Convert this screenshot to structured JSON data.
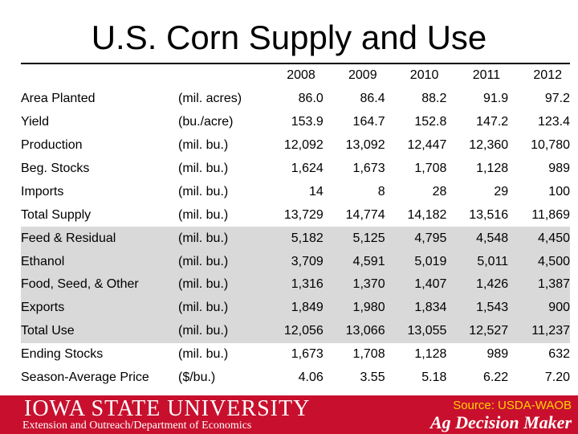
{
  "title": "U.S. Corn Supply and Use",
  "years": [
    "2008",
    "2009",
    "2010",
    "2011",
    "2012"
  ],
  "rows": [
    {
      "label": "Area Planted",
      "unit": "(mil. acres)",
      "values": [
        "86.0",
        "86.4",
        "88.2",
        "91.9",
        "97.2"
      ]
    },
    {
      "label": "Yield",
      "unit": "(bu./acre)",
      "values": [
        "153.9",
        "164.7",
        "152.8",
        "147.2",
        "123.4"
      ]
    },
    {
      "label": "Production",
      "unit": "(mil. bu.)",
      "values": [
        "12,092",
        "13,092",
        "12,447",
        "12,360",
        "10,780"
      ]
    },
    {
      "label": "Beg. Stocks",
      "unit": "(mil. bu.)",
      "values": [
        "1,624",
        "1,673",
        "1,708",
        "1,128",
        "989"
      ]
    },
    {
      "label": "Imports",
      "unit": "(mil. bu.)",
      "values": [
        "14",
        "8",
        "28",
        "29",
        "100"
      ]
    },
    {
      "label": "Total Supply",
      "unit": "(mil. bu.)",
      "values": [
        "13,729",
        "14,774",
        "14,182",
        "13,516",
        "11,869"
      ]
    },
    {
      "label": "Feed & Residual",
      "unit": "(mil. bu.)",
      "values": [
        "5,182",
        "5,125",
        "4,795",
        "4,548",
        "4,450"
      ]
    },
    {
      "label": "Ethanol",
      "unit": "(mil. bu.)",
      "values": [
        "3,709",
        "4,591",
        "5,019",
        "5,011",
        "4,500"
      ]
    },
    {
      "label": "Food, Seed, & Other",
      "unit": "(mil. bu.)",
      "values": [
        "1,316",
        "1,370",
        "1,407",
        "1,426",
        "1,387"
      ]
    },
    {
      "label": "Exports",
      "unit": "(mil. bu.)",
      "values": [
        "1,849",
        "1,980",
        "1,834",
        "1,543",
        "900"
      ]
    },
    {
      "label": "Total Use",
      "unit": "(mil. bu.)",
      "values": [
        "12,056",
        "13,066",
        "13,055",
        "12,527",
        "11,237"
      ]
    },
    {
      "label": "Ending Stocks",
      "unit": "(mil. bu.)",
      "values": [
        "1,673",
        "1,708",
        "1,128",
        "989",
        "632"
      ]
    },
    {
      "label": "Season-Average Price",
      "unit": "($/bu.)",
      "values": [
        "4.06",
        "3.55",
        "5.18",
        "6.22",
        "7.20"
      ]
    }
  ],
  "footer": {
    "university": "Iowa State University",
    "department": "Extension and Outreach/Department of Economics",
    "source": "Source: USDA-WAOB",
    "brand": "Ag Decision Maker",
    "bar_color": "#c8102e",
    "source_color": "#ffd200",
    "shade_color": "#d9d9d9"
  }
}
